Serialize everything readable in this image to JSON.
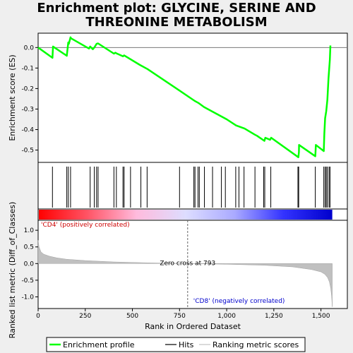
{
  "chart_data": {
    "type": "line",
    "title": [
      "Enrichment plot: GLYCINE, SERINE AND",
      "THREONINE METABOLISM"
    ],
    "top_panel": {
      "ylabel": "Enrichment score (ES)",
      "ylim": [
        -0.56,
        0.07
      ],
      "yticks": [
        0.0,
        -0.1,
        -0.2,
        -0.3,
        -0.4,
        -0.5
      ],
      "ytick_labels": [
        "0.0",
        "-0.1",
        "-0.2",
        "-0.3",
        "-0.4",
        "-0.5"
      ],
      "baseline": 0.0,
      "series": [
        {
          "name": "Enrichment profile",
          "color": "#00ff00",
          "x": [
            0,
            76,
            79,
            152,
            155,
            160,
            163,
            172,
            175,
            270,
            276,
            290,
            298,
            310,
            318,
            402,
            410,
            415,
            450,
            456,
            540,
            580,
            750,
            830,
            840,
            850,
            880,
            1000,
            1050,
            1095,
            1150,
            1160,
            1200,
            1205,
            1230,
            1236,
            1380,
            1383,
            1384,
            1470,
            1473,
            1515,
            1518,
            1522,
            1528,
            1534,
            1540,
            1547,
            1550
          ],
          "y": [
            0.0,
            -0.05,
            0.005,
            -0.04,
            -0.015,
            0.025,
            0.018,
            0.05,
            0.045,
            -0.005,
            0.005,
            -0.008,
            0.0,
            0.018,
            0.02,
            -0.03,
            -0.025,
            -0.028,
            -0.043,
            -0.038,
            -0.085,
            -0.105,
            -0.21,
            -0.26,
            -0.265,
            -0.27,
            -0.29,
            -0.35,
            -0.38,
            -0.395,
            -0.425,
            -0.43,
            -0.455,
            -0.44,
            -0.45,
            -0.44,
            -0.535,
            -0.51,
            -0.475,
            -0.53,
            -0.475,
            -0.505,
            -0.42,
            -0.345,
            -0.31,
            -0.255,
            -0.15,
            -0.06,
            0.01
          ]
        }
      ]
    },
    "hits": {
      "color": "#000000",
      "positions": [
        76,
        152,
        160,
        172,
        276,
        298,
        310,
        318,
        402,
        415,
        450,
        456,
        490,
        545,
        578,
        750,
        826,
        832,
        848,
        855,
        882,
        925,
        972,
        993,
        1048,
        1065,
        1092,
        1150,
        1196,
        1202,
        1234,
        1378,
        1382,
        1470,
        1515,
        1522,
        1528,
        1534,
        1543,
        1548
      ]
    },
    "color_bar": {
      "stops": [
        "#ff0000",
        "#ff5566",
        "#ffbbdd",
        "#ddddff",
        "#aaaaff",
        "#3333ff",
        "#0000cc"
      ]
    },
    "bottom_panel": {
      "ylabel": "Ranked list metric (Diff_of_Classes)",
      "ylim": [
        -1.35,
        1.3
      ],
      "yticks": [
        1.0,
        0.5,
        0.0,
        -0.5,
        -1.0
      ],
      "ytick_labels": [
        "1.0",
        "0.5",
        "0.0",
        "-0.5",
        "-1.0"
      ],
      "series": [
        {
          "name": "Ranking metric scores",
          "color": "#c0c0c0",
          "x": [
            0,
            5,
            15,
            30,
            60,
            100,
            150,
            250,
            400,
            600,
            793,
            1000,
            1200,
            1350,
            1450,
            1500,
            1520,
            1535,
            1545,
            1552,
            1557,
            1560
          ],
          "y": [
            0.7,
            0.5,
            0.35,
            0.28,
            0.22,
            0.17,
            0.13,
            0.09,
            0.05,
            0.02,
            0.0,
            -0.02,
            -0.05,
            -0.1,
            -0.18,
            -0.25,
            -0.32,
            -0.42,
            -0.55,
            -0.75,
            -1.0,
            -1.3
          ]
        }
      ],
      "zero_cross": 793,
      "zero_cross_label": "Zero cross at 793",
      "pos_label": "'CD4' (positively correlated)",
      "neg_label": "'CD8' (negatively correlated)"
    },
    "xlabel": "Rank in Ordered Dataset",
    "xlim": [
      0,
      1640
    ],
    "xticks": [
      0,
      250,
      500,
      750,
      1000,
      1250,
      1500
    ],
    "xtick_labels": [
      "0",
      "250",
      "500",
      "750",
      "1,000",
      "1,250",
      "1,500"
    ],
    "legend": {
      "placement": "bottom",
      "entries": [
        {
          "label": "Enrichment profile",
          "color": "#00ff00"
        },
        {
          "label": "Hits",
          "color": "#000000"
        },
        {
          "label": "Ranking metric scores",
          "color": "#c0c0c0"
        }
      ]
    }
  }
}
